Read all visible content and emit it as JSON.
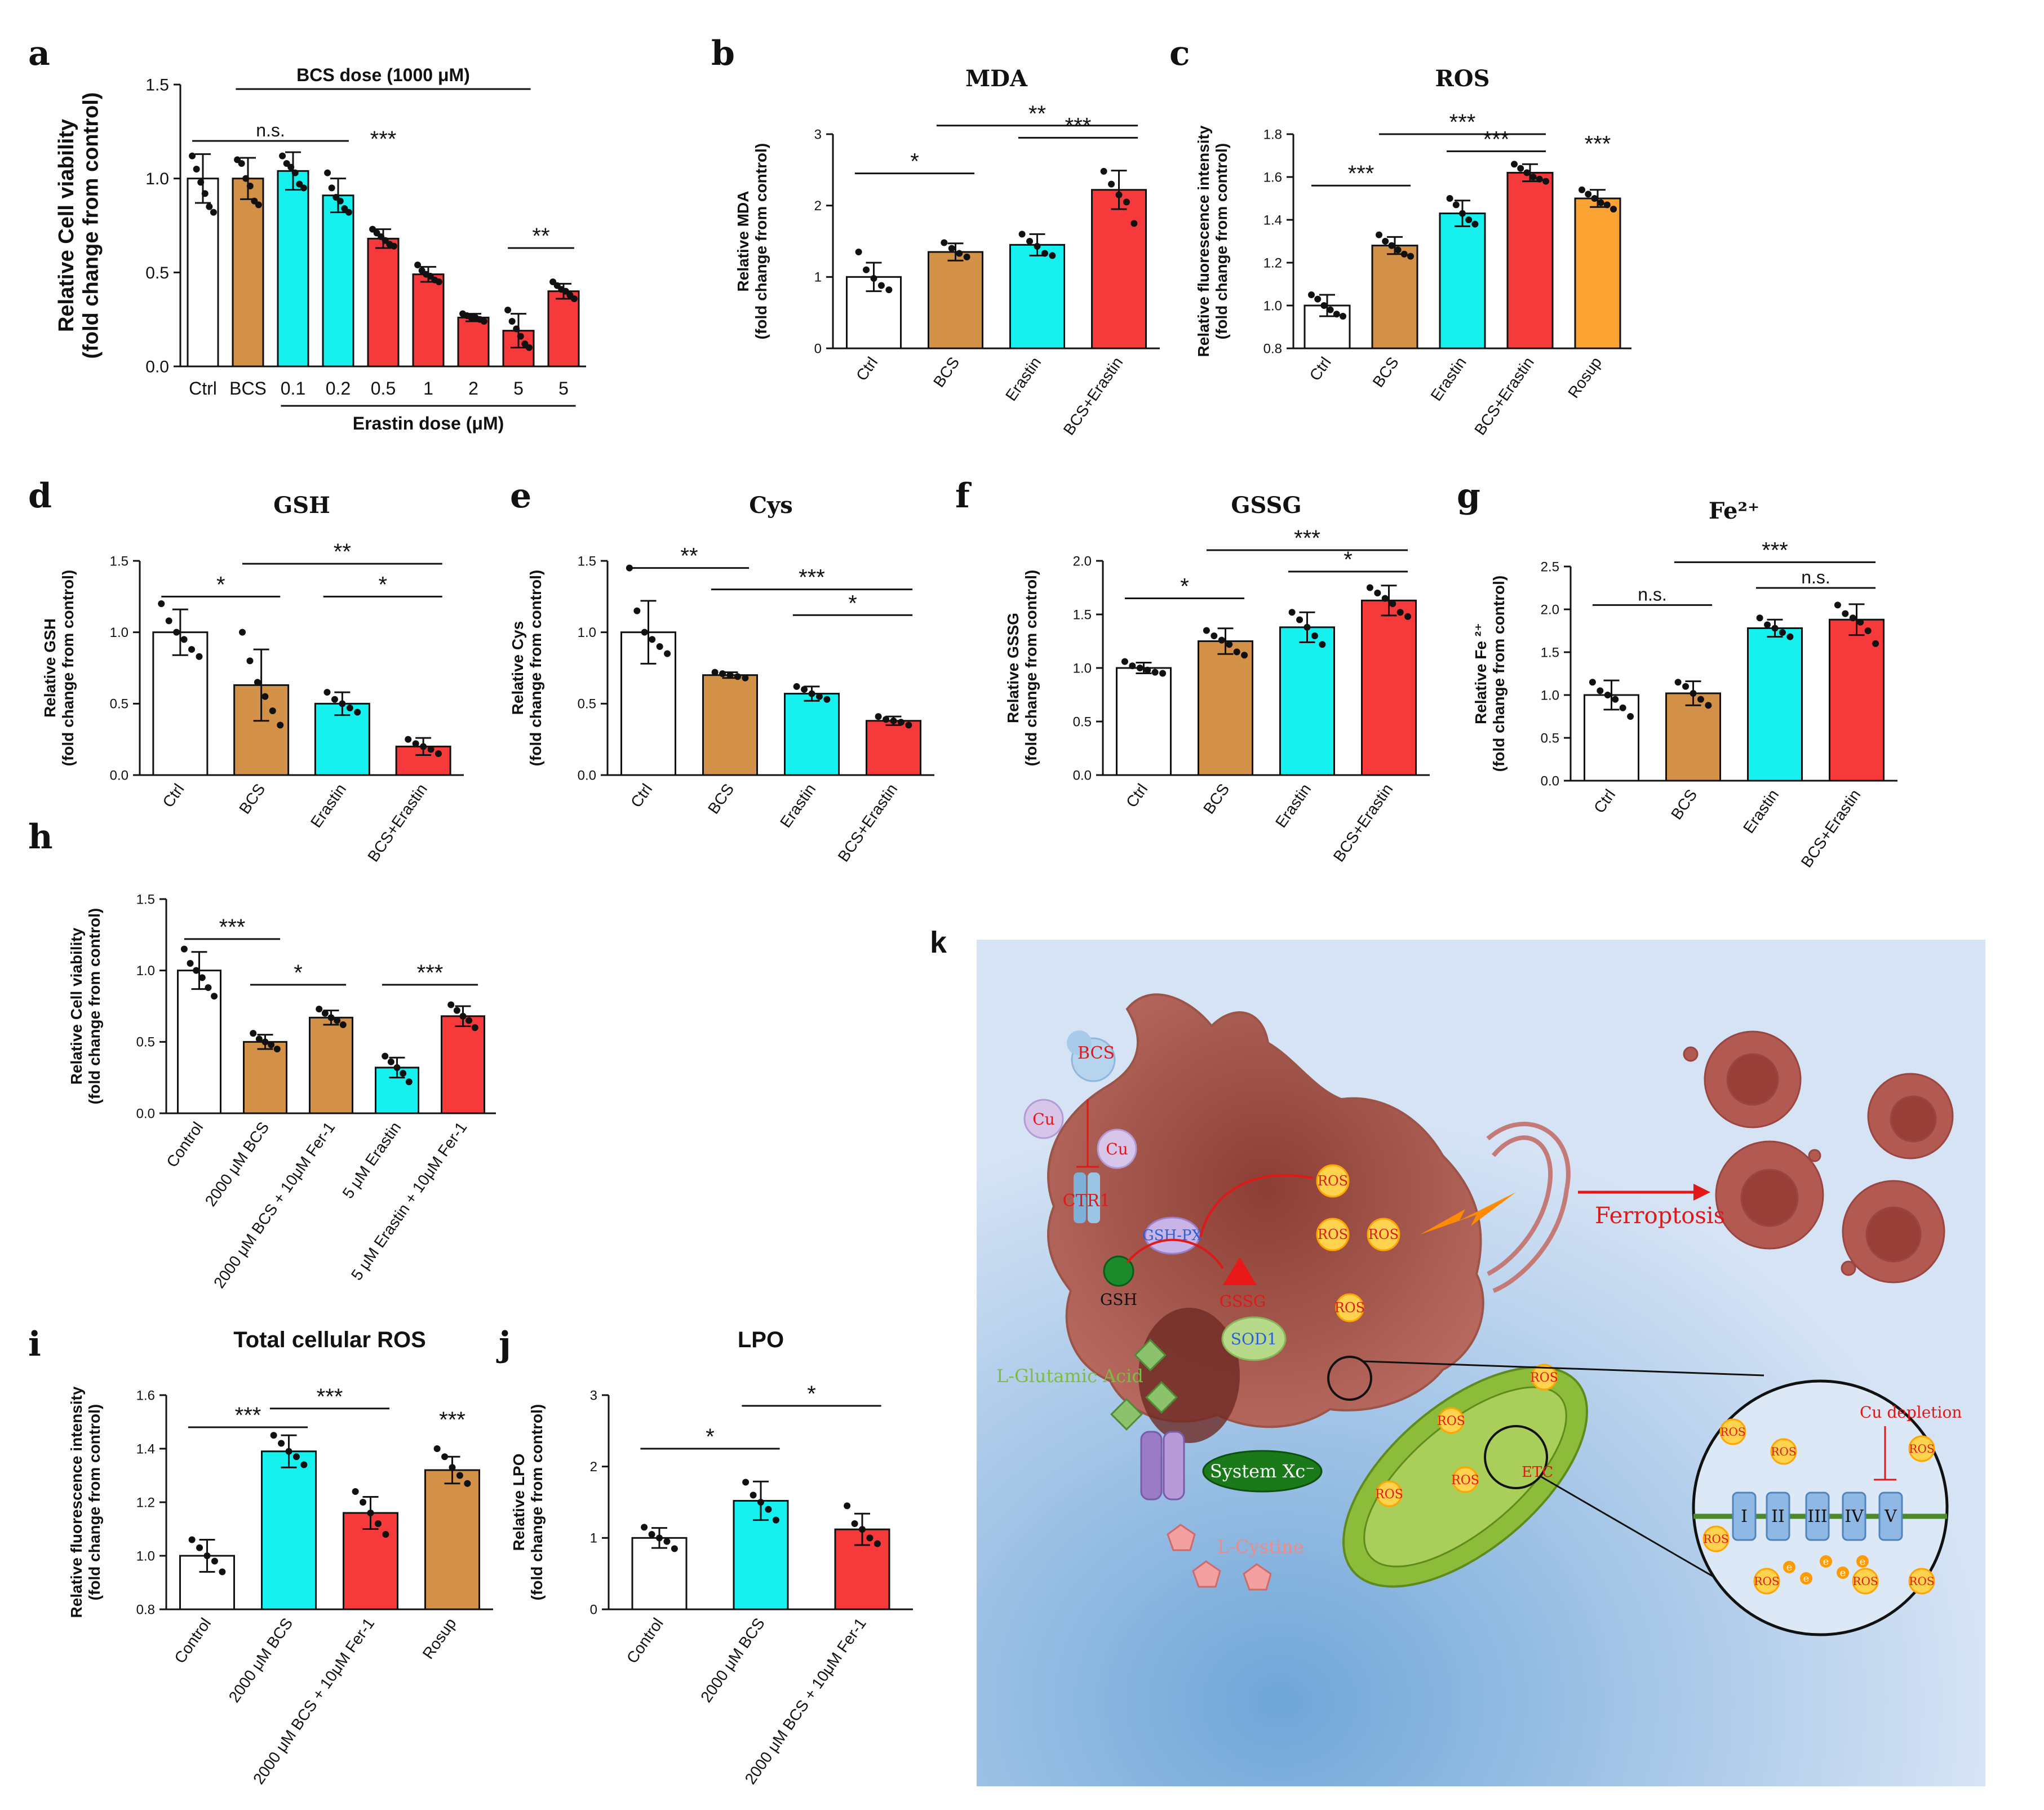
{
  "palette": {
    "white": "#ffffff",
    "bcs": "#d39047",
    "cyan": "#16f1ef",
    "red": "#f63a3c",
    "orange": "#fca433",
    "text": "#111111",
    "text_red": "#e01818",
    "pink": "#ef8a8a",
    "green": "#2e9a3a",
    "blue_text": "#2b5fd8",
    "bg_k": "#d4e1f4"
  },
  "chart_data": [
    {
      "id": "a",
      "panel_letter": "a",
      "type": "bar",
      "title": "",
      "ylabel_lines": [
        "Relative Cell viability",
        "(fold change from control)"
      ],
      "ylim": [
        0,
        1.5
      ],
      "yticks": [
        0,
        0.5,
        1.0,
        1.5
      ],
      "ytick_labels": [
        "0.0",
        "0.5",
        "1.0",
        "1.5"
      ],
      "categories": [
        "Ctrl",
        "BCS",
        "0.1",
        "0.2",
        "0.5",
        "1",
        "2",
        "5",
        "5"
      ],
      "colors": [
        "white",
        "bcs",
        "cyan",
        "cyan",
        "red",
        "red",
        "red",
        "red",
        "red"
      ],
      "values": [
        1.0,
        1.0,
        1.04,
        0.91,
        0.68,
        0.49,
        0.26,
        0.19,
        0.4
      ],
      "errors": [
        0.13,
        0.11,
        0.1,
        0.09,
        0.05,
        0.04,
        0.02,
        0.09,
        0.04
      ],
      "points": [
        [
          1.12,
          1.05,
          0.98,
          0.92,
          0.85,
          0.82
        ],
        [
          1.1,
          1.08,
          1.0,
          0.96,
          0.88,
          0.86
        ],
        [
          1.12,
          1.08,
          1.06,
          1.03,
          0.97,
          0.95
        ],
        [
          1.03,
          0.95,
          0.9,
          0.88,
          0.84,
          0.82
        ],
        [
          0.73,
          0.71,
          0.69,
          0.67,
          0.65,
          0.64
        ],
        [
          0.54,
          0.51,
          0.49,
          0.48,
          0.46,
          0.45
        ],
        [
          0.28,
          0.27,
          0.26,
          0.26,
          0.25,
          0.24
        ],
        [
          0.3,
          0.24,
          0.2,
          0.16,
          0.12,
          0.1
        ],
        [
          0.45,
          0.43,
          0.41,
          0.4,
          0.38,
          0.36
        ]
      ],
      "sig": [
        {
          "from": 0,
          "to": 3,
          "y": 1.2,
          "label": "n.s."
        },
        {
          "from": 7,
          "to": 8,
          "y": 0.63,
          "label": "**"
        },
        {
          "bar": 4,
          "y": 1.17,
          "label": "***",
          "standalone": true
        }
      ],
      "top_note": "BCS dose (1000 μM)",
      "top_note_span": [
        1,
        7
      ],
      "bottom_note": "Erastin dose (μM)",
      "bottom_note_span": [
        2,
        8
      ]
    },
    {
      "id": "b",
      "panel_letter": "b",
      "type": "bar",
      "title": "MDA",
      "ylabel_lines": [
        "Relative MDA",
        "(fold change from control)"
      ],
      "ylim": [
        0,
        3
      ],
      "yticks": [
        0,
        1,
        2,
        3
      ],
      "ytick_labels": [
        "0",
        "1",
        "2",
        "3"
      ],
      "categories": [
        "Ctrl",
        "BCS",
        "Erastin",
        "BCS+Erastin"
      ],
      "colors": [
        "white",
        "bcs",
        "cyan",
        "red"
      ],
      "values": [
        1.0,
        1.35,
        1.45,
        2.22
      ],
      "errors": [
        0.2,
        0.12,
        0.15,
        0.27
      ],
      "points": [
        [
          1.35,
          1.1,
          0.98,
          0.88,
          0.82
        ],
        [
          1.48,
          1.4,
          1.33,
          1.28
        ],
        [
          1.6,
          1.5,
          1.43,
          1.33,
          1.3
        ],
        [
          2.48,
          2.3,
          2.15,
          2.05,
          1.75
        ]
      ],
      "sig": [
        {
          "from": 0,
          "to": 1,
          "y": 2.45,
          "label": "*"
        },
        {
          "from": 2,
          "to": 3,
          "y": 2.95,
          "label": "***"
        },
        {
          "from": 1,
          "to": 3,
          "y": 3.12,
          "label": "**"
        }
      ]
    },
    {
      "id": "c",
      "panel_letter": "c",
      "type": "bar",
      "title": "ROS",
      "ylabel_lines": [
        "Relative fluorescence intensity",
        "(fold change from control)"
      ],
      "ylim": [
        0.8,
        1.8
      ],
      "yticks": [
        0.8,
        1.0,
        1.2,
        1.4,
        1.6,
        1.8
      ],
      "ytick_labels": [
        "0.8",
        "1.0",
        "1.2",
        "1.4",
        "1.6",
        "1.8"
      ],
      "categories": [
        "Ctrl",
        "BCS",
        "Erastin",
        "BCS+Erastin",
        "Rosup"
      ],
      "colors": [
        "white",
        "bcs",
        "cyan",
        "red",
        "orange"
      ],
      "values": [
        1.0,
        1.28,
        1.43,
        1.62,
        1.5
      ],
      "errors": [
        0.05,
        0.04,
        0.06,
        0.04,
        0.04
      ],
      "points": [
        [
          1.05,
          1.03,
          1.0,
          0.98,
          0.96,
          0.95
        ],
        [
          1.33,
          1.3,
          1.28,
          1.26,
          1.24,
          1.23
        ],
        [
          1.5,
          1.47,
          1.43,
          1.4,
          1.38
        ],
        [
          1.66,
          1.64,
          1.62,
          1.6,
          1.59,
          1.58
        ],
        [
          1.54,
          1.52,
          1.5,
          1.48,
          1.47,
          1.45
        ]
      ],
      "sig": [
        {
          "from": 0,
          "to": 1,
          "y": 1.56,
          "label": "***"
        },
        {
          "from": 2,
          "to": 3,
          "y": 1.72,
          "label": "***"
        },
        {
          "from": 1,
          "to": 3,
          "y": 1.8,
          "label": "***"
        },
        {
          "bar": 4,
          "y": 1.72,
          "label": "***",
          "standalone": true
        }
      ]
    },
    {
      "id": "d",
      "panel_letter": "d",
      "type": "bar",
      "title": "GSH",
      "ylabel_lines": [
        "Relative GSH",
        "(fold change from control)"
      ],
      "ylim": [
        0,
        1.5
      ],
      "yticks": [
        0,
        0.5,
        1.0,
        1.5
      ],
      "ytick_labels": [
        "0.0",
        "0.5",
        "1.0",
        "1.5"
      ],
      "categories": [
        "Ctrl",
        "BCS",
        "Erastin",
        "BCS+Erastin"
      ],
      "colors": [
        "white",
        "bcs",
        "cyan",
        "red"
      ],
      "values": [
        1.0,
        0.63,
        0.5,
        0.2
      ],
      "errors": [
        0.16,
        0.25,
        0.08,
        0.06
      ],
      "points": [
        [
          1.2,
          1.08,
          1.0,
          0.95,
          0.88,
          0.83
        ],
        [
          1.0,
          0.8,
          0.65,
          0.55,
          0.45,
          0.35
        ],
        [
          0.58,
          0.53,
          0.5,
          0.47,
          0.44
        ],
        [
          0.25,
          0.22,
          0.2,
          0.18,
          0.15
        ]
      ],
      "sig": [
        {
          "from": 0,
          "to": 1,
          "y": 1.25,
          "label": "*"
        },
        {
          "from": 2,
          "to": 3,
          "y": 1.25,
          "label": "*"
        },
        {
          "from": 1,
          "to": 3,
          "y": 1.48,
          "label": "**"
        }
      ]
    },
    {
      "id": "e",
      "panel_letter": "e",
      "type": "bar",
      "title": "Cys",
      "ylabel_lines": [
        "Relative Cys",
        "(fold change from control)"
      ],
      "ylim": [
        0,
        1.5
      ],
      "yticks": [
        0,
        0.5,
        1.0,
        1.5
      ],
      "ytick_labels": [
        "0.0",
        "0.5",
        "1.0",
        "1.5"
      ],
      "categories": [
        "Ctrl",
        "BCS",
        "Erastin",
        "BCS+Erastin"
      ],
      "colors": [
        "white",
        "bcs",
        "cyan",
        "red"
      ],
      "values": [
        1.0,
        0.7,
        0.57,
        0.38
      ],
      "errors": [
        0.22,
        0.02,
        0.05,
        0.03
      ],
      "points": [
        [
          1.45,
          1.15,
          1.0,
          0.95,
          0.9,
          0.85
        ],
        [
          0.72,
          0.71,
          0.7,
          0.69,
          0.68
        ],
        [
          0.62,
          0.6,
          0.57,
          0.55,
          0.53
        ],
        [
          0.41,
          0.39,
          0.38,
          0.37,
          0.35
        ]
      ],
      "sig": [
        {
          "from": 0,
          "to": 1,
          "y": 1.45,
          "label": "**"
        },
        {
          "from": 2,
          "to": 3,
          "y": 1.12,
          "label": "*"
        },
        {
          "from": 1,
          "to": 3,
          "y": 1.3,
          "label": "***"
        }
      ]
    },
    {
      "id": "f",
      "panel_letter": "f",
      "type": "bar",
      "title": "GSSG",
      "ylabel_lines": [
        "Relative GSSG",
        "(fold change from control)"
      ],
      "ylim": [
        0,
        2.0
      ],
      "yticks": [
        0,
        0.5,
        1.0,
        1.5,
        2.0
      ],
      "ytick_labels": [
        "0.0",
        "0.5",
        "1.0",
        "1.5",
        "2.0"
      ],
      "categories": [
        "Ctrl",
        "BCS",
        "Erastin",
        "BCS+Erastin"
      ],
      "colors": [
        "white",
        "bcs",
        "cyan",
        "red"
      ],
      "values": [
        1.0,
        1.25,
        1.38,
        1.63
      ],
      "errors": [
        0.05,
        0.12,
        0.14,
        0.14
      ],
      "points": [
        [
          1.06,
          1.02,
          1.0,
          0.98,
          0.96,
          0.95
        ],
        [
          1.35,
          1.3,
          1.26,
          1.22,
          1.15,
          1.12
        ],
        [
          1.52,
          1.45,
          1.38,
          1.3,
          1.22
        ],
        [
          1.75,
          1.7,
          1.65,
          1.6,
          1.52,
          1.48
        ]
      ],
      "sig": [
        {
          "from": 0,
          "to": 1,
          "y": 1.65,
          "label": "*"
        },
        {
          "from": 2,
          "to": 3,
          "y": 1.9,
          "label": "*"
        },
        {
          "from": 1,
          "to": 3,
          "y": 2.1,
          "label": "***"
        }
      ]
    },
    {
      "id": "g",
      "panel_letter": "g",
      "type": "bar",
      "title": "Fe²⁺",
      "ylabel_lines": [
        "Relative Fe ²⁺",
        "(fold change from control)"
      ],
      "ylim": [
        0,
        2.5
      ],
      "yticks": [
        0,
        0.5,
        1.0,
        1.5,
        2.0,
        2.5
      ],
      "ytick_labels": [
        "0.0",
        "0.5",
        "1.0",
        "1.5",
        "2.0",
        "2.5"
      ],
      "categories": [
        "Ctrl",
        "BCS",
        "Erastin",
        "BCS+Erastin"
      ],
      "colors": [
        "white",
        "bcs",
        "cyan",
        "red"
      ],
      "values": [
        1.0,
        1.02,
        1.78,
        1.88
      ],
      "errors": [
        0.17,
        0.14,
        0.1,
        0.18
      ],
      "points": [
        [
          1.15,
          1.05,
          1.0,
          0.95,
          0.85,
          0.75
        ],
        [
          1.15,
          1.1,
          1.02,
          0.95,
          0.88
        ],
        [
          1.9,
          1.82,
          1.78,
          1.73,
          1.68
        ],
        [
          2.05,
          1.95,
          1.9,
          1.85,
          1.75,
          1.6
        ]
      ],
      "sig": [
        {
          "from": 0,
          "to": 1,
          "y": 2.05,
          "label": "n.s."
        },
        {
          "from": 2,
          "to": 3,
          "y": 2.25,
          "label": "n.s."
        },
        {
          "from": 1,
          "to": 3,
          "y": 2.55,
          "label": "***"
        }
      ]
    },
    {
      "id": "h",
      "panel_letter": "h",
      "type": "bar",
      "title": "",
      "ylabel_lines": [
        "Relative Cell viability",
        "(fold change from control)"
      ],
      "ylim": [
        0,
        1.5
      ],
      "yticks": [
        0,
        0.5,
        1.0,
        1.5
      ],
      "ytick_labels": [
        "0.0",
        "0.5",
        "1.0",
        "1.5"
      ],
      "categories": [
        "Control",
        "2000 μM BCS",
        "2000 μM BCS + 10μM Fer-1",
        "5 μM Erastin",
        "5 μM Erastin + 10μM Fer-1"
      ],
      "colors": [
        "white",
        "bcs",
        "bcs",
        "cyan",
        "red"
      ],
      "values": [
        1.0,
        0.5,
        0.67,
        0.32,
        0.68
      ],
      "errors": [
        0.13,
        0.05,
        0.05,
        0.07,
        0.07
      ],
      "points": [
        [
          1.15,
          1.05,
          1.0,
          0.95,
          0.88,
          0.82
        ],
        [
          0.56,
          0.52,
          0.5,
          0.48,
          0.45
        ],
        [
          0.73,
          0.7,
          0.67,
          0.65,
          0.62
        ],
        [
          0.4,
          0.36,
          0.32,
          0.28,
          0.22
        ],
        [
          0.76,
          0.72,
          0.68,
          0.65,
          0.6
        ]
      ],
      "sig": [
        {
          "from": 0,
          "to": 1,
          "y": 1.22,
          "label": "***"
        },
        {
          "from": 1,
          "to": 2,
          "y": 0.9,
          "label": "*"
        },
        {
          "from": 3,
          "to": 4,
          "y": 0.9,
          "label": "***"
        }
      ]
    },
    {
      "id": "i",
      "panel_letter": "i",
      "type": "bar",
      "title": "Total cellular ROS",
      "ylabel_lines": [
        "Relative fluorescence intensity",
        "(fold change from control)"
      ],
      "ylim": [
        0.8,
        1.6
      ],
      "yticks": [
        0.8,
        1.0,
        1.2,
        1.4,
        1.6
      ],
      "ytick_labels": [
        "0.8",
        "1.0",
        "1.2",
        "1.4",
        "1.6"
      ],
      "categories": [
        "Control",
        "2000 μM BCS",
        "2000 μM BCS + 10μM Fer-1",
        "Rosup"
      ],
      "colors": [
        "white",
        "cyan",
        "red",
        "bcs"
      ],
      "values": [
        1.0,
        1.39,
        1.16,
        1.32
      ],
      "errors": [
        0.06,
        0.06,
        0.06,
        0.05
      ],
      "points": [
        [
          1.06,
          1.03,
          1.0,
          0.98,
          0.94
        ],
        [
          1.45,
          1.42,
          1.39,
          1.37,
          1.34
        ],
        [
          1.24,
          1.2,
          1.16,
          1.12,
          1.08
        ],
        [
          1.4,
          1.37,
          1.33,
          1.3,
          1.27
        ]
      ],
      "sig": [
        {
          "from": 0,
          "to": 1,
          "y": 1.48,
          "label": "***"
        },
        {
          "from": 1,
          "to": 2,
          "y": 1.55,
          "label": "***"
        },
        {
          "bar": 3,
          "y": 1.48,
          "label": "***",
          "standalone": true
        }
      ]
    },
    {
      "id": "j",
      "panel_letter": "j",
      "type": "bar",
      "title": "LPO",
      "ylabel_lines": [
        "Relative LPO",
        "(fold change from control)"
      ],
      "ylim": [
        0,
        3
      ],
      "yticks": [
        0,
        1,
        2,
        3
      ],
      "ytick_labels": [
        "0",
        "1",
        "2",
        "3"
      ],
      "categories": [
        "Control",
        "2000 μM BCS",
        "2000 μM BCS + 10μM Fer-1"
      ],
      "colors": [
        "white",
        "cyan",
        "red"
      ],
      "values": [
        1.0,
        1.52,
        1.12
      ],
      "errors": [
        0.14,
        0.27,
        0.22
      ],
      "points": [
        [
          1.15,
          1.05,
          1.0,
          0.95,
          0.85
        ],
        [
          1.78,
          1.6,
          1.5,
          1.4,
          1.25
        ],
        [
          1.45,
          1.2,
          1.12,
          1.0,
          0.92
        ]
      ],
      "sig": [
        {
          "from": 0,
          "to": 1,
          "y": 2.25,
          "label": "*"
        },
        {
          "from": 1,
          "to": 2,
          "y": 2.85,
          "label": "*"
        }
      ]
    }
  ],
  "panel_k": {
    "letter": "k",
    "labels": {
      "bcs": "BCS",
      "cu1": "Cu",
      "cu2": "Cu",
      "ctr1": "CTR1",
      "gsh_px": "GSH-PX",
      "gsh": "GSH",
      "gssg": "GSSG",
      "sod1": "SOD1",
      "ros": "ROS",
      "ferroptosis": "Ferroptosis",
      "glutamic": "L-Glutamic Acid",
      "system": "System Xc⁻",
      "cystine": "L-Cystine",
      "etc": "ETC",
      "cu_depletion": "Cu depletion",
      "complexes": [
        "I",
        "II",
        "III",
        "IV",
        "V"
      ],
      "electron": "e"
    }
  }
}
